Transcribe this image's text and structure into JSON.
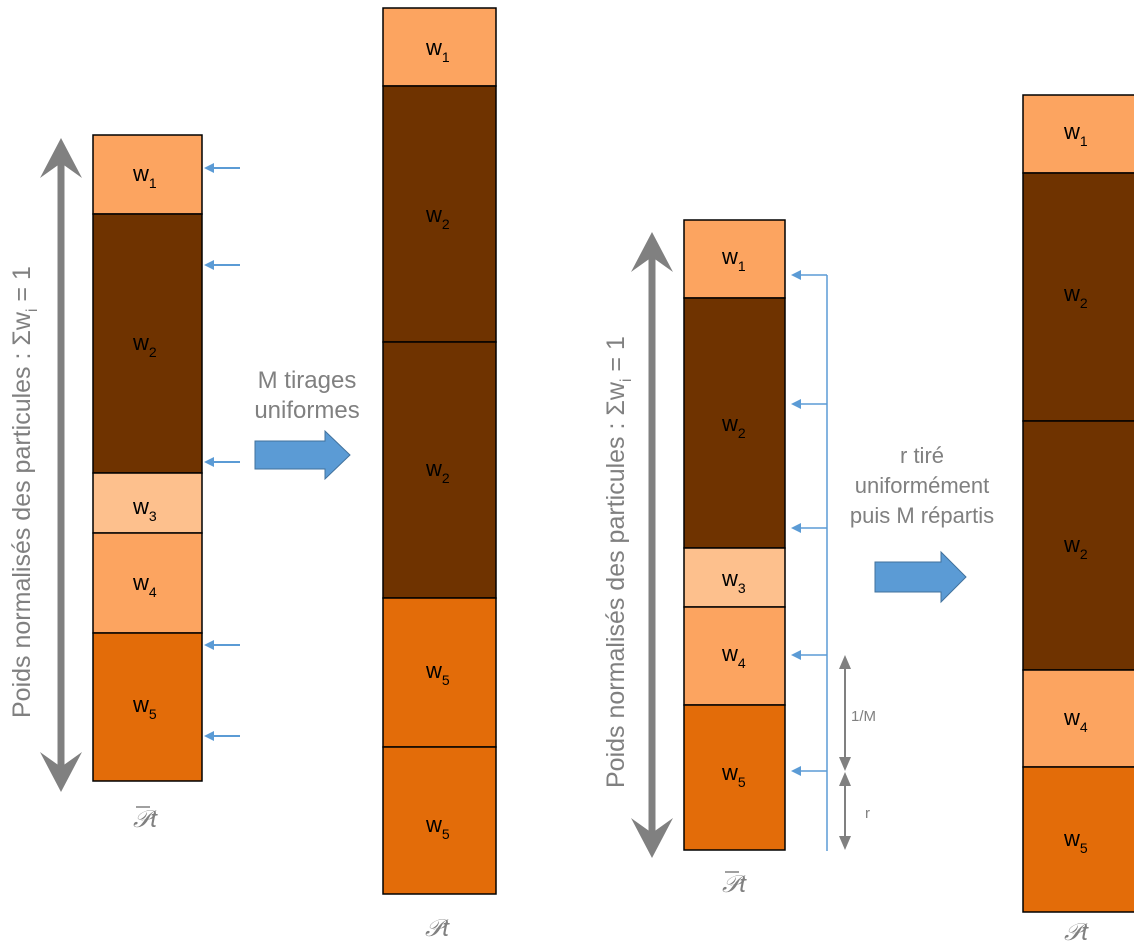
{
  "colors": {
    "light_orange": "#fca460",
    "dark_brown": "#6f3300",
    "pale_orange": "#fdc08d",
    "dark_orange": "#e36c09",
    "arrow_blue": "#5b9bd5",
    "axis_gray": "#808080",
    "text_gray": "#808080",
    "label_black": "#000000"
  },
  "axis_label": {
    "prefix": "Poids normalisés des particules : Σw",
    "sub": "i",
    "suffix": " = 1"
  },
  "particle_set_label": {
    "before": "𝒫t",
    "after": "𝒫t"
  },
  "weight_labels": {
    "w1": {
      "base": "w",
      "sub": "1"
    },
    "w2": {
      "base": "w",
      "sub": "2"
    },
    "w3": {
      "base": "w",
      "sub": "3"
    },
    "w4": {
      "base": "w",
      "sub": "4"
    },
    "w5": {
      "base": "w",
      "sub": "5"
    }
  },
  "multinomial": {
    "caption_lines": [
      "M tirages",
      "uniformes"
    ],
    "source_stack": [
      "w1",
      "w2",
      "w3",
      "w4",
      "w5"
    ],
    "result_stack": [
      "w1",
      "w2",
      "w2",
      "w5",
      "w5"
    ]
  },
  "systematic": {
    "caption_lines": [
      "r tiré",
      "uniformément",
      "puis M répartis"
    ],
    "source_stack": [
      "w1",
      "w2",
      "w3",
      "w4",
      "w5"
    ],
    "result_stack": [
      "w1",
      "w2",
      "w2",
      "w4",
      "w5"
    ],
    "interval_label": "1/M",
    "offset_label": "r"
  }
}
